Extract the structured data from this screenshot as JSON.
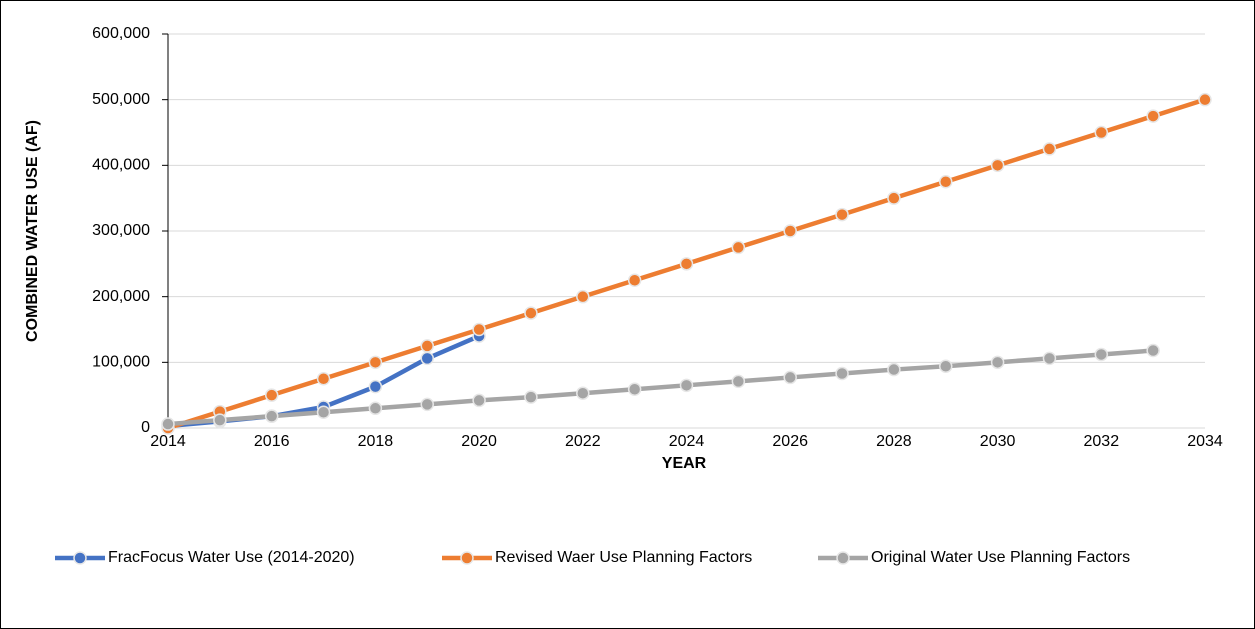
{
  "chart_data": {
    "type": "line",
    "x_label": "YEAR",
    "y_label": "COMBINED WATER USE (AF)",
    "x": [
      2014,
      2015,
      2016,
      2017,
      2018,
      2019,
      2020,
      2021,
      2022,
      2023,
      2024,
      2025,
      2026,
      2027,
      2028,
      2029,
      2030,
      2031,
      2032,
      2033,
      2034
    ],
    "series": [
      {
        "name": "FracFocus Water Use (2014-2020)",
        "color": "#4472c4",
        "values": [
          3000,
          10000,
          18000,
          32000,
          63000,
          106000,
          140000,
          null,
          null,
          null,
          null,
          null,
          null,
          null,
          null,
          null,
          null,
          null,
          null,
          null,
          null
        ]
      },
      {
        "name": "Revised Waer Use Planning Factors",
        "color": "#ed7d31",
        "values": [
          0,
          25000,
          50000,
          75000,
          100000,
          125000,
          150000,
          175000,
          200000,
          225000,
          250000,
          275000,
          300000,
          325000,
          350000,
          375000,
          400000,
          425000,
          450000,
          475000,
          500000
        ]
      },
      {
        "name": "Original Water Use Planning Factors",
        "color": "#a5a5a5",
        "values": [
          6000,
          12000,
          18000,
          24000,
          30000,
          36000,
          42000,
          47000,
          53000,
          59000,
          65000,
          71000,
          77000,
          83000,
          89000,
          94000,
          100000,
          106000,
          112000,
          118000,
          null
        ]
      }
    ],
    "xlim": [
      2014,
      2034
    ],
    "xticks": [
      2014,
      2016,
      2018,
      2020,
      2022,
      2024,
      2026,
      2028,
      2030,
      2032,
      2034
    ],
    "ylim": [
      0,
      600000
    ],
    "yticks": [
      0,
      {
        "value": 100000,
        "label": "100,000"
      },
      {
        "value": 200000,
        "label": "200,000"
      },
      {
        "value": 300000,
        "label": "300,000"
      },
      {
        "value": 400000,
        "label": "400,000"
      },
      {
        "value": 500000,
        "label": "500,000"
      },
      {
        "value": 600000,
        "label": "600,000"
      }
    ],
    "grid": true,
    "legend": "bottom"
  }
}
